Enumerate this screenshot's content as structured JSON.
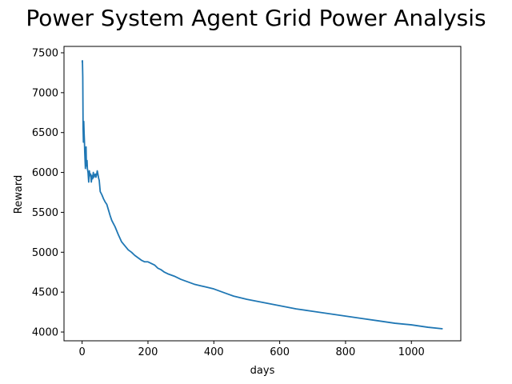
{
  "chart_data": {
    "type": "line",
    "title": "Power System Agent Grid Power Analysis",
    "xlabel": "days",
    "ylabel": "Reward",
    "xlim": [
      -55,
      1150
    ],
    "ylim": [
      3890,
      7580
    ],
    "grid": false,
    "x_ticks": [
      0,
      200,
      400,
      600,
      800,
      1000
    ],
    "y_ticks": [
      4000,
      4500,
      5000,
      5500,
      6000,
      6500,
      7000,
      7500
    ],
    "x_tick_labels": [
      "0",
      "200",
      "400",
      "600",
      "800",
      "1000"
    ],
    "y_tick_labels": [
      "4000",
      "4500",
      "5000",
      "5500",
      "6000",
      "6500",
      "7000",
      "7500"
    ],
    "series": [
      {
        "color": "#1f77b4",
        "x": [
          0,
          1,
          2,
          3,
          4,
          5,
          6,
          7,
          8,
          9,
          10,
          11,
          12,
          13,
          14,
          15,
          16,
          18,
          20,
          22,
          24,
          26,
          28,
          30,
          32,
          34,
          36,
          38,
          40,
          42,
          44,
          46,
          48,
          50,
          52,
          55,
          60,
          65,
          70,
          75,
          80,
          85,
          90,
          95,
          100,
          110,
          120,
          130,
          140,
          150,
          160,
          170,
          180,
          190,
          200,
          210,
          220,
          230,
          240,
          250,
          260,
          280,
          300,
          320,
          340,
          360,
          380,
          400,
          420,
          440,
          460,
          480,
          500,
          550,
          600,
          650,
          700,
          750,
          800,
          850,
          900,
          950,
          1000,
          1050,
          1095
        ],
        "values": [
          7380,
          7400,
          7200,
          6550,
          6380,
          6640,
          6500,
          6400,
          6250,
          6150,
          6050,
          6150,
          6320,
          6100,
          6080,
          6150,
          6050,
          6000,
          5880,
          6020,
          5960,
          5980,
          5880,
          5960,
          5920,
          6000,
          5940,
          5970,
          5980,
          5940,
          5970,
          6020,
          5980,
          5930,
          5900,
          5760,
          5720,
          5670,
          5630,
          5600,
          5530,
          5460,
          5400,
          5360,
          5320,
          5220,
          5130,
          5080,
          5030,
          5000,
          4960,
          4930,
          4900,
          4880,
          4880,
          4860,
          4840,
          4800,
          4780,
          4750,
          4730,
          4700,
          4660,
          4630,
          4600,
          4580,
          4560,
          4540,
          4510,
          4480,
          4450,
          4430,
          4410,
          4370,
          4330,
          4290,
          4260,
          4230,
          4200,
          4170,
          4140,
          4110,
          4090,
          4060,
          4040
        ]
      }
    ]
  }
}
